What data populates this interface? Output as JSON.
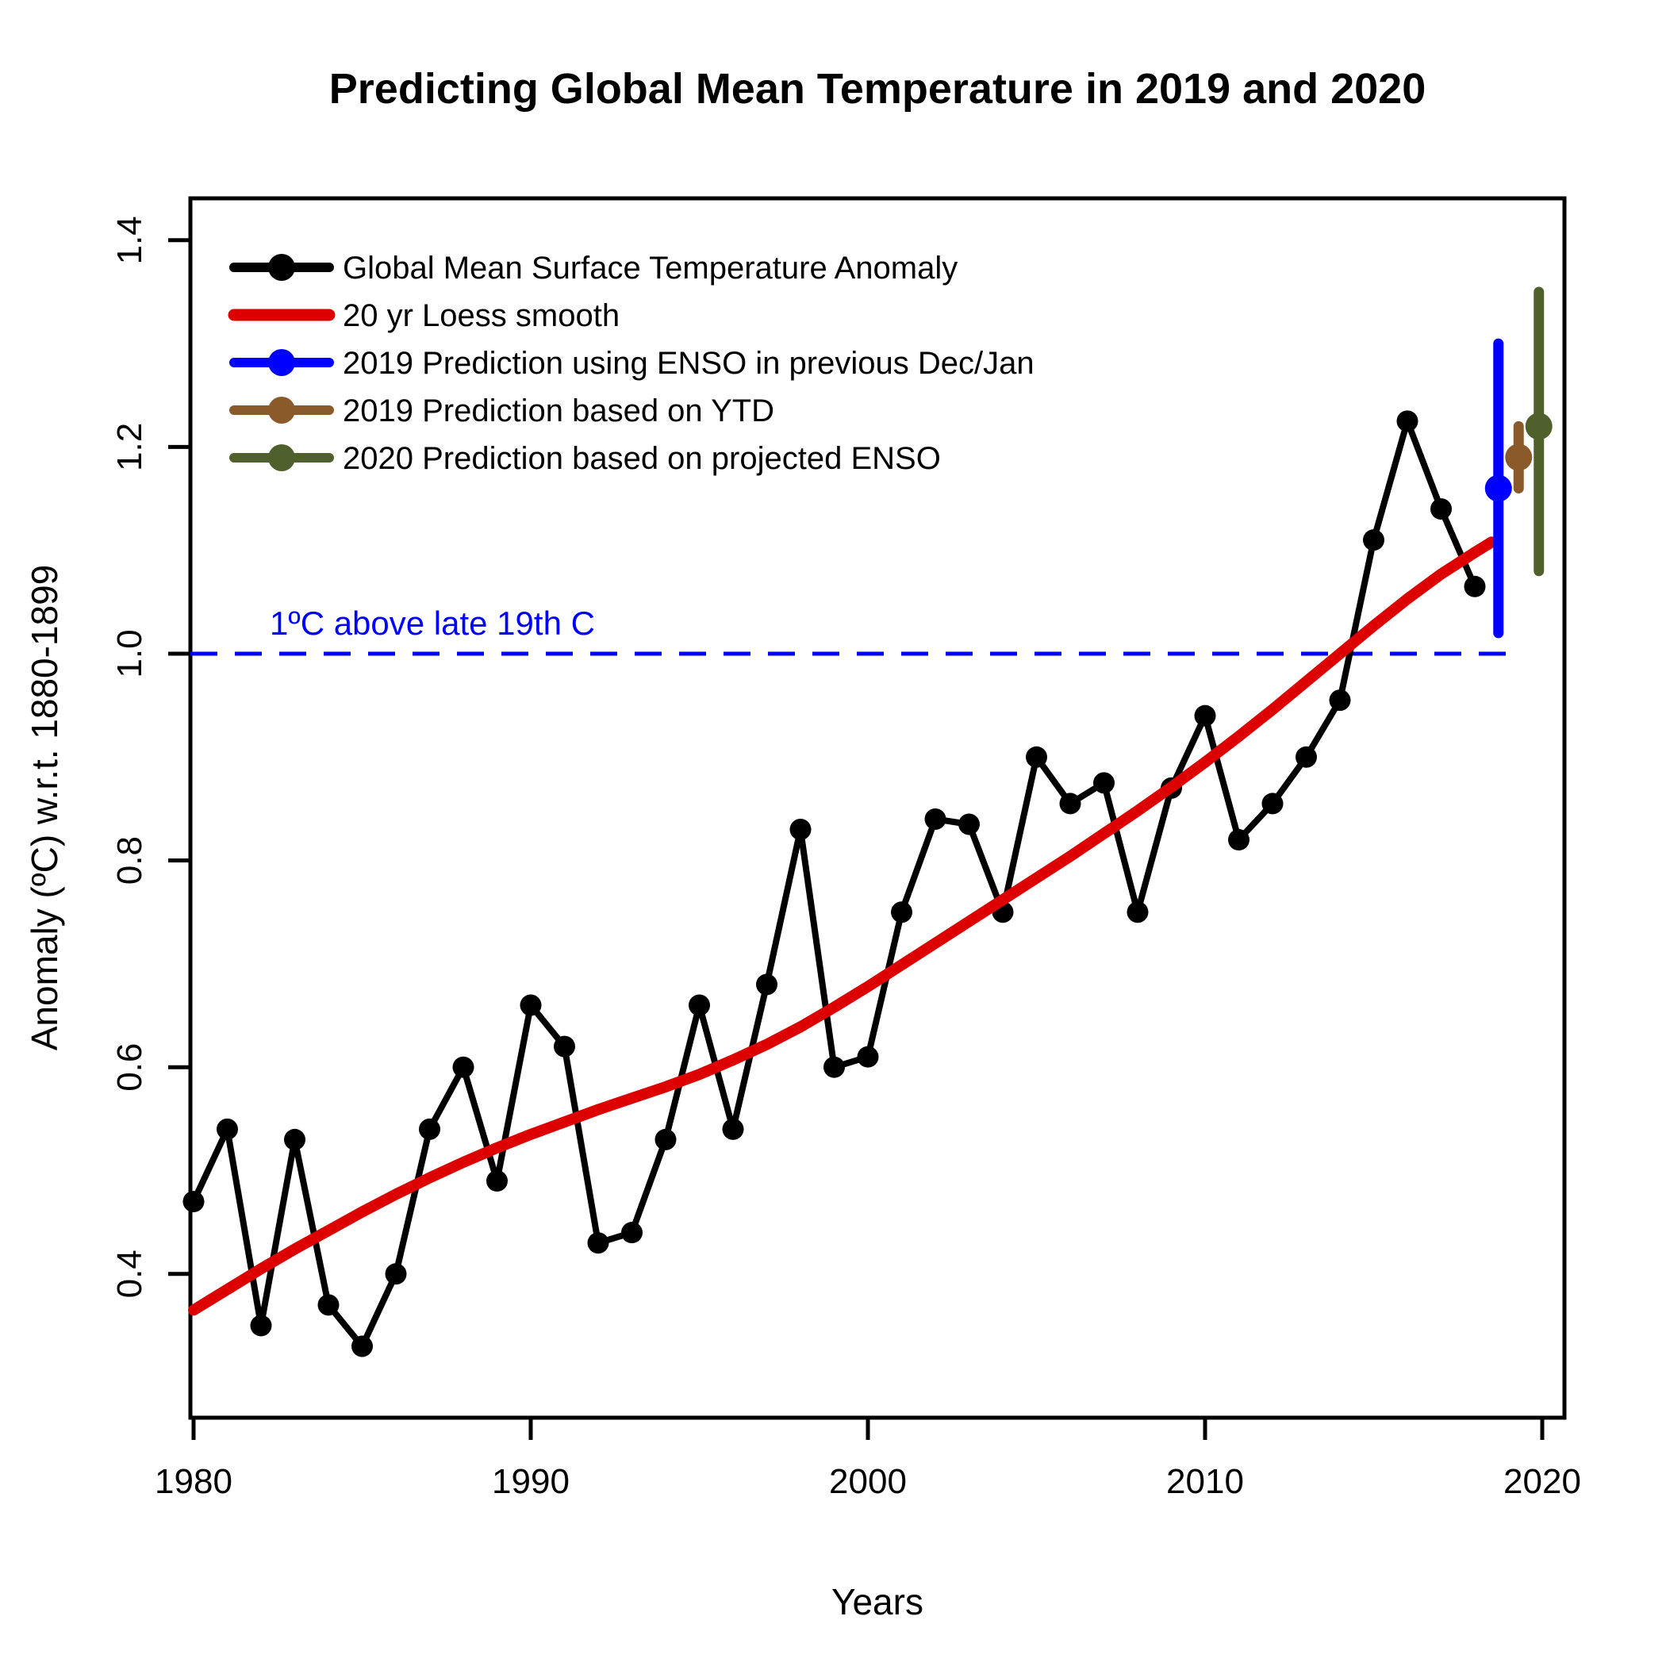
{
  "chart_data": {
    "type": "line",
    "title": "Predicting Global Mean Temperature in 2019 and 2020",
    "xlabel": "Years",
    "ylabel": "Anomaly (ºC) w.r.t. 1880-1899",
    "xlim": [
      1979.8,
      2020.7
    ],
    "ylim": [
      0.26,
      1.44
    ],
    "x_ticks": [
      1980,
      1990,
      2000,
      2010,
      2020
    ],
    "y_ticks": [
      0.4,
      0.6,
      0.8,
      1.0,
      1.2,
      1.4
    ],
    "grid": false,
    "legend_position": "top-left",
    "annotation": {
      "text": "1ºC above late 19th C",
      "y_value": 1.0,
      "color": "#0000FF",
      "line_style": "dashed"
    },
    "series": [
      {
        "name": "Global Mean Surface Temperature Anomaly",
        "color": "#000000",
        "marker": "dot",
        "x": [
          1980,
          1981,
          1982,
          1983,
          1984,
          1985,
          1986,
          1987,
          1988,
          1989,
          1990,
          1991,
          1992,
          1993,
          1994,
          1995,
          1996,
          1997,
          1998,
          1999,
          2000,
          2001,
          2002,
          2003,
          2004,
          2005,
          2006,
          2007,
          2008,
          2009,
          2010,
          2011,
          2012,
          2013,
          2014,
          2015,
          2016,
          2017,
          2018
        ],
        "values": [
          0.47,
          0.54,
          0.35,
          0.53,
          0.37,
          0.33,
          0.4,
          0.54,
          0.6,
          0.49,
          0.66,
          0.62,
          0.43,
          0.44,
          0.53,
          0.66,
          0.54,
          0.68,
          0.83,
          0.6,
          0.61,
          0.75,
          0.84,
          0.835,
          0.75,
          0.9,
          0.855,
          0.875,
          0.75,
          0.87,
          0.94,
          0.82,
          0.855,
          0.9,
          0.955,
          1.11,
          1.225,
          1.14,
          1.065
        ]
      },
      {
        "name": "20 yr Loess smooth",
        "color": "#DD0000",
        "marker": "none",
        "x": [
          1980,
          1981,
          1982,
          1983,
          1984,
          1985,
          1986,
          1987,
          1988,
          1989,
          1990,
          1991,
          1992,
          1993,
          1994,
          1995,
          1996,
          1997,
          1998,
          1999,
          2000,
          2001,
          2002,
          2003,
          2004,
          2005,
          2006,
          2007,
          2008,
          2009,
          2010,
          2011,
          2012,
          2013,
          2014,
          2015,
          2016,
          2017,
          2018,
          2018.5
        ],
        "values": [
          0.365,
          0.385,
          0.405,
          0.424,
          0.442,
          0.46,
          0.477,
          0.493,
          0.508,
          0.522,
          0.535,
          0.547,
          0.559,
          0.57,
          0.581,
          0.593,
          0.607,
          0.622,
          0.639,
          0.658,
          0.678,
          0.699,
          0.72,
          0.741,
          0.762,
          0.783,
          0.804,
          0.826,
          0.848,
          0.871,
          0.895,
          0.92,
          0.946,
          0.973,
          1.0,
          1.027,
          1.053,
          1.077,
          1.098,
          1.108
        ]
      }
    ],
    "predictions": [
      {
        "name": "2019 Prediction using ENSO in previous Dec/Jan",
        "color": "#0000FF",
        "year": 2018.7,
        "center": 1.16,
        "low": 1.02,
        "high": 1.3
      },
      {
        "name": "2019 Prediction based on YTD",
        "color": "#8B5A2B",
        "year": 2019.3,
        "center": 1.19,
        "low": 1.16,
        "high": 1.22
      },
      {
        "name": "2020 Prediction based on projected ENSO",
        "color": "#50602C",
        "year": 2019.9,
        "center": 1.22,
        "low": 1.08,
        "high": 1.35
      }
    ],
    "legend": [
      {
        "label": "Global Mean Surface Temperature Anomaly",
        "color": "#000000",
        "dot": true
      },
      {
        "label": "20 yr Loess smooth",
        "color": "#DD0000",
        "dot": false
      },
      {
        "label": "2019 Prediction using ENSO in previous Dec/Jan",
        "color": "#0000FF",
        "dot": true
      },
      {
        "label": "2019 Prediction based on YTD",
        "color": "#8B5A2B",
        "dot": true
      },
      {
        "label": "2020 Prediction based on projected ENSO",
        "color": "#50602C",
        "dot": true
      }
    ],
    "colors": {
      "observed": "#000000",
      "loess": "#DD0000",
      "prediction_enso_2019": "#0000FF",
      "prediction_ytd_2019": "#8B5A2B",
      "prediction_2020": "#50602C",
      "reference_line": "#0000FF",
      "background": "#FFFFFF"
    }
  }
}
